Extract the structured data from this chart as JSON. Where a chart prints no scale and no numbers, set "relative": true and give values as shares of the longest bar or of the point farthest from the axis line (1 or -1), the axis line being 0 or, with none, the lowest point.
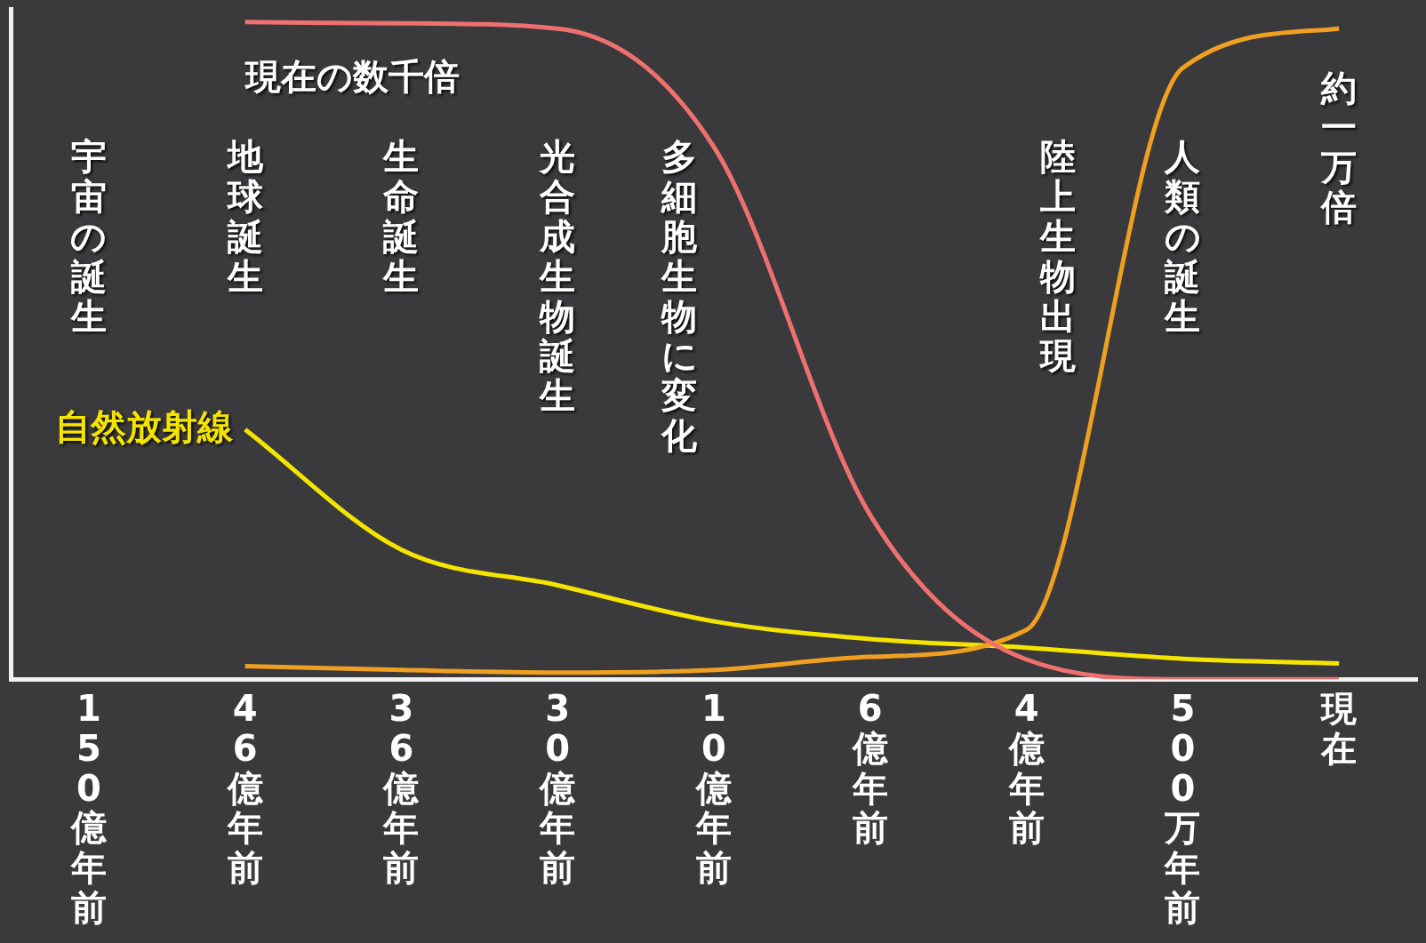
{
  "chart_data": {
    "type": "line",
    "relative": true,
    "categories": [
      "150億年前",
      "46億年前",
      "36億年前",
      "30億年前",
      "10億年前",
      "6億年前",
      "4億年前",
      "500万年前",
      "現在"
    ],
    "series": [
      {
        "color": "#f07070",
        "values": [
          null,
          1,
          0.998,
          0.99,
          0.81,
          0.25,
          0.03,
          0,
          0
        ]
      },
      {
        "color": "#f0a020",
        "values": [
          null,
          0.02,
          0.014,
          0.01,
          0.014,
          0.034,
          0.075,
          0.93,
          0.99
        ]
      },
      {
        "name": "自然放射線",
        "color": "#f5e400",
        "values": [
          null,
          0.38,
          0.197,
          0.143,
          0.088,
          0.061,
          0.048,
          0.031,
          0.024
        ]
      }
    ],
    "annotations": [
      "宇宙の誕生",
      "地球誕生",
      "生命誕生",
      "光合成生物誕生",
      "多細胞生物に変化",
      "陸上生物出現",
      "人類の誕生",
      {
        "text": "現在の数千倍",
        "x": "46億年前",
        "y": 1
      },
      {
        "text": "約一万倍",
        "x": "現在",
        "y": 0.99
      }
    ],
    "grid": false,
    "legend": false
  }
}
